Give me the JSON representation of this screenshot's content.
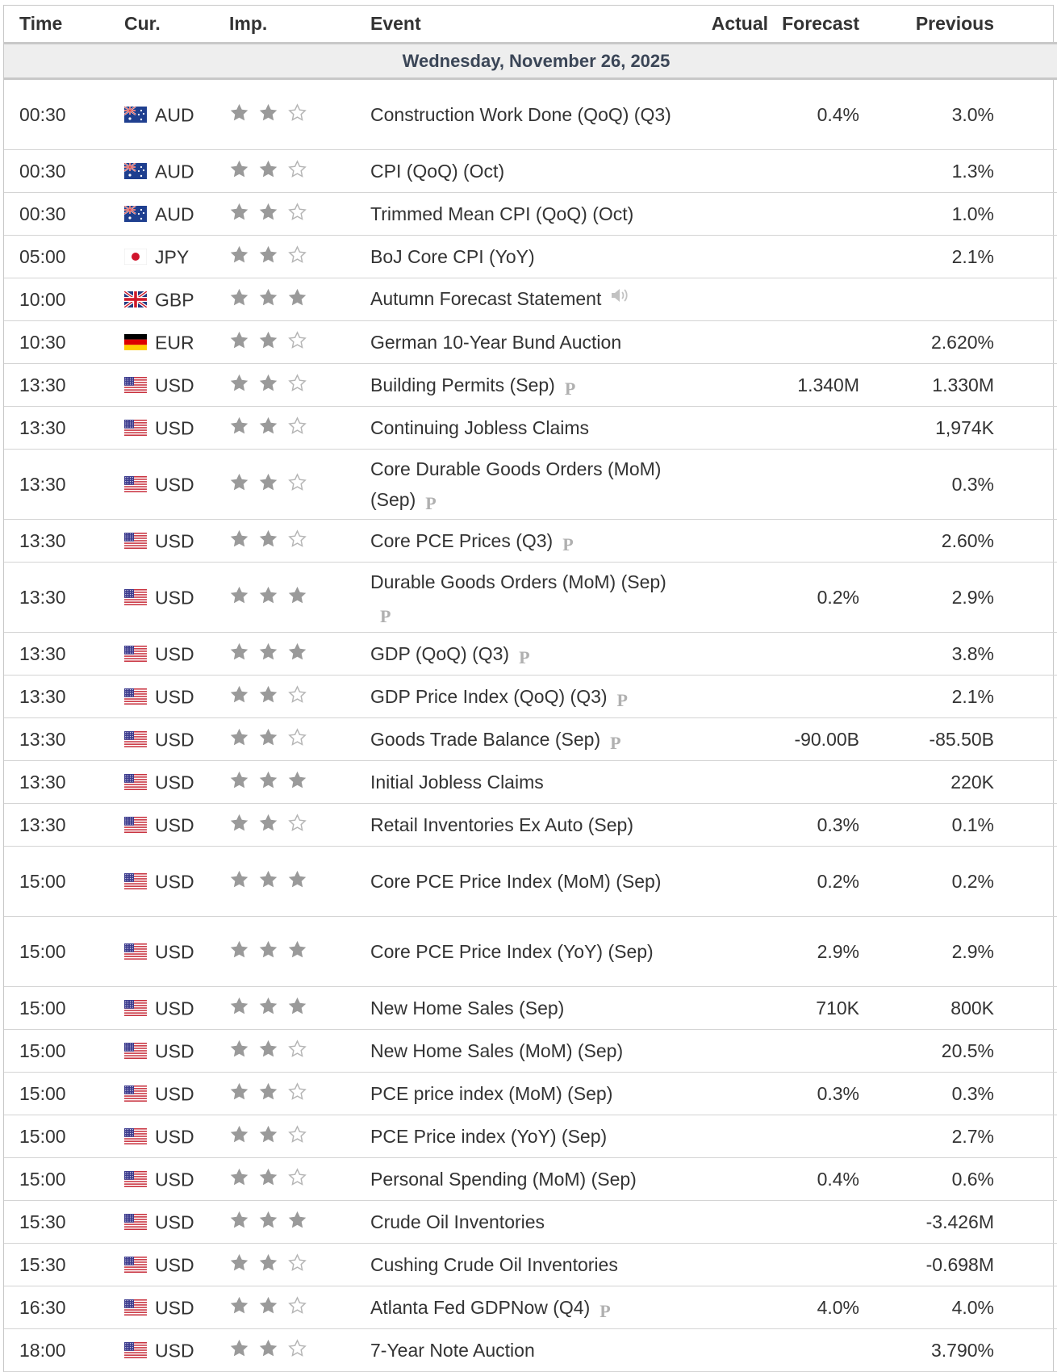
{
  "headers": {
    "time": "Time",
    "currency": "Cur.",
    "importance": "Imp.",
    "event": "Event",
    "actual": "Actual",
    "forecast": "Forecast",
    "previous": "Previous"
  },
  "date_label": "Wednesday, November 26, 2025",
  "colors": {
    "star_filled": "#9a9a9a",
    "star_empty_stroke": "#b5b5b5",
    "date_bar_bg": "#eeeeee",
    "date_text": "#3b4657",
    "border": "#d4d4d4"
  },
  "rows": [
    {
      "time": "00:30",
      "flag": "au-flag-icon",
      "currency": "AUD",
      "stars": 2,
      "event": "Construction Work Done (QoQ) (Q3)",
      "preliminary": false,
      "speech": false,
      "actual": "",
      "forecast": "0.4%",
      "previous": "3.0%",
      "tall": true
    },
    {
      "time": "00:30",
      "flag": "au-flag-icon",
      "currency": "AUD",
      "stars": 2,
      "event": "CPI (QoQ) (Oct)",
      "preliminary": false,
      "speech": false,
      "actual": "",
      "forecast": "",
      "previous": "1.3%",
      "tall": false
    },
    {
      "time": "00:30",
      "flag": "au-flag-icon",
      "currency": "AUD",
      "stars": 2,
      "event": "Trimmed Mean CPI (QoQ) (Oct)",
      "preliminary": false,
      "speech": false,
      "actual": "",
      "forecast": "",
      "previous": "1.0%",
      "tall": false
    },
    {
      "time": "05:00",
      "flag": "jp-flag-icon",
      "currency": "JPY",
      "stars": 2,
      "event": "BoJ Core CPI (YoY)",
      "preliminary": false,
      "speech": false,
      "actual": "",
      "forecast": "",
      "previous": "2.1%",
      "tall": false
    },
    {
      "time": "10:00",
      "flag": "gb-flag-icon",
      "currency": "GBP",
      "stars": 3,
      "event": "Autumn Forecast Statement",
      "preliminary": false,
      "speech": true,
      "actual": "",
      "forecast": "",
      "previous": "",
      "tall": false
    },
    {
      "time": "10:30",
      "flag": "de-flag-icon",
      "currency": "EUR",
      "stars": 2,
      "event": "German 10-Year Bund Auction",
      "preliminary": false,
      "speech": false,
      "actual": "",
      "forecast": "",
      "previous": "2.620%",
      "tall": false
    },
    {
      "time": "13:30",
      "flag": "us-flag-icon",
      "currency": "USD",
      "stars": 2,
      "event": "Building Permits (Sep)",
      "preliminary": true,
      "speech": false,
      "actual": "",
      "forecast": "1.340M",
      "previous": "1.330M",
      "tall": false
    },
    {
      "time": "13:30",
      "flag": "us-flag-icon",
      "currency": "USD",
      "stars": 2,
      "event": "Continuing Jobless Claims",
      "preliminary": false,
      "speech": false,
      "actual": "",
      "forecast": "",
      "previous": "1,974K",
      "tall": false
    },
    {
      "time": "13:30",
      "flag": "us-flag-icon",
      "currency": "USD",
      "stars": 2,
      "event": "Core Durable Goods Orders (MoM) (Sep)",
      "preliminary": true,
      "speech": false,
      "actual": "",
      "forecast": "",
      "previous": "0.3%",
      "tall": true
    },
    {
      "time": "13:30",
      "flag": "us-flag-icon",
      "currency": "USD",
      "stars": 2,
      "event": "Core PCE Prices (Q3)",
      "preliminary": true,
      "speech": false,
      "actual": "",
      "forecast": "",
      "previous": "2.60%",
      "tall": false
    },
    {
      "time": "13:30",
      "flag": "us-flag-icon",
      "currency": "USD",
      "stars": 3,
      "event": "Durable Goods Orders (MoM) (Sep)",
      "preliminary": true,
      "speech": false,
      "actual": "",
      "forecast": "0.2%",
      "previous": "2.9%",
      "tall": true
    },
    {
      "time": "13:30",
      "flag": "us-flag-icon",
      "currency": "USD",
      "stars": 3,
      "event": "GDP (QoQ) (Q3)",
      "preliminary": true,
      "speech": false,
      "actual": "",
      "forecast": "",
      "previous": "3.8%",
      "tall": false
    },
    {
      "time": "13:30",
      "flag": "us-flag-icon",
      "currency": "USD",
      "stars": 2,
      "event": "GDP Price Index (QoQ) (Q3)",
      "preliminary": true,
      "speech": false,
      "actual": "",
      "forecast": "",
      "previous": "2.1%",
      "tall": false
    },
    {
      "time": "13:30",
      "flag": "us-flag-icon",
      "currency": "USD",
      "stars": 2,
      "event": "Goods Trade Balance (Sep)",
      "preliminary": true,
      "speech": false,
      "actual": "",
      "forecast": "-90.00B",
      "previous": "-85.50B",
      "tall": false
    },
    {
      "time": "13:30",
      "flag": "us-flag-icon",
      "currency": "USD",
      "stars": 3,
      "event": "Initial Jobless Claims",
      "preliminary": false,
      "speech": false,
      "actual": "",
      "forecast": "",
      "previous": "220K",
      "tall": false
    },
    {
      "time": "13:30",
      "flag": "us-flag-icon",
      "currency": "USD",
      "stars": 2,
      "event": "Retail Inventories Ex Auto (Sep)",
      "preliminary": false,
      "speech": false,
      "actual": "",
      "forecast": "0.3%",
      "previous": "0.1%",
      "tall": false
    },
    {
      "time": "15:00",
      "flag": "us-flag-icon",
      "currency": "USD",
      "stars": 3,
      "event": "Core PCE Price Index (MoM) (Sep)",
      "preliminary": false,
      "speech": false,
      "actual": "",
      "forecast": "0.2%",
      "previous": "0.2%",
      "tall": true
    },
    {
      "time": "15:00",
      "flag": "us-flag-icon",
      "currency": "USD",
      "stars": 3,
      "event": "Core PCE Price Index (YoY) (Sep)",
      "preliminary": false,
      "speech": false,
      "actual": "",
      "forecast": "2.9%",
      "previous": "2.9%",
      "tall": true
    },
    {
      "time": "15:00",
      "flag": "us-flag-icon",
      "currency": "USD",
      "stars": 3,
      "event": "New Home Sales (Sep)",
      "preliminary": false,
      "speech": false,
      "actual": "",
      "forecast": "710K",
      "previous": "800K",
      "tall": false
    },
    {
      "time": "15:00",
      "flag": "us-flag-icon",
      "currency": "USD",
      "stars": 2,
      "event": "New Home Sales (MoM) (Sep)",
      "preliminary": false,
      "speech": false,
      "actual": "",
      "forecast": "",
      "previous": "20.5%",
      "tall": false
    },
    {
      "time": "15:00",
      "flag": "us-flag-icon",
      "currency": "USD",
      "stars": 2,
      "event": "PCE price index (MoM) (Sep)",
      "preliminary": false,
      "speech": false,
      "actual": "",
      "forecast": "0.3%",
      "previous": "0.3%",
      "tall": false
    },
    {
      "time": "15:00",
      "flag": "us-flag-icon",
      "currency": "USD",
      "stars": 2,
      "event": "PCE Price index (YoY) (Sep)",
      "preliminary": false,
      "speech": false,
      "actual": "",
      "forecast": "",
      "previous": "2.7%",
      "tall": false
    },
    {
      "time": "15:00",
      "flag": "us-flag-icon",
      "currency": "USD",
      "stars": 2,
      "event": "Personal Spending (MoM) (Sep)",
      "preliminary": false,
      "speech": false,
      "actual": "",
      "forecast": "0.4%",
      "previous": "0.6%",
      "tall": false
    },
    {
      "time": "15:30",
      "flag": "us-flag-icon",
      "currency": "USD",
      "stars": 3,
      "event": "Crude Oil Inventories",
      "preliminary": false,
      "speech": false,
      "actual": "",
      "forecast": "",
      "previous": "-3.426M",
      "tall": false
    },
    {
      "time": "15:30",
      "flag": "us-flag-icon",
      "currency": "USD",
      "stars": 2,
      "event": "Cushing Crude Oil Inventories",
      "preliminary": false,
      "speech": false,
      "actual": "",
      "forecast": "",
      "previous": "-0.698M",
      "tall": false
    },
    {
      "time": "16:30",
      "flag": "us-flag-icon",
      "currency": "USD",
      "stars": 2,
      "event": "Atlanta Fed GDPNow (Q4)",
      "preliminary": true,
      "speech": false,
      "actual": "",
      "forecast": "4.0%",
      "previous": "4.0%",
      "tall": false
    },
    {
      "time": "18:00",
      "flag": "us-flag-icon",
      "currency": "USD",
      "stars": 2,
      "event": "7-Year Note Auction",
      "preliminary": false,
      "speech": false,
      "actual": "",
      "forecast": "",
      "previous": "3.790%",
      "tall": false
    }
  ],
  "preliminary_mark": "P"
}
